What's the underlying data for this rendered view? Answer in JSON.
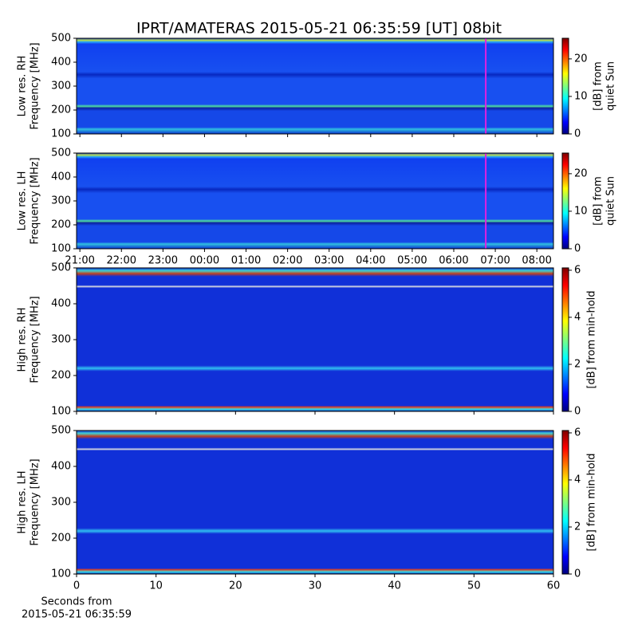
{
  "chart_data": [
    {
      "type": "heatmap",
      "title": "IPRT/AMATERAS 2015-05-21 06:35:59 [UT]   08bit",
      "ylabel": [
        "Low res. RH",
        "Frequency [MHz]"
      ],
      "ylim": [
        100,
        500
      ],
      "yticks": [
        100,
        200,
        300,
        400,
        500
      ],
      "xlim": [
        20.92,
        32.4
      ],
      "marker": 30.77,
      "marker_color": "#e020e0",
      "colorbar": {
        "label": [
          "[dB] from",
          "quiet Sun"
        ],
        "clim": [
          0,
          25.5
        ],
        "ticks": [
          0,
          10,
          20
        ]
      }
    },
    {
      "type": "heatmap",
      "ylabel": [
        "Low res. LH",
        "Frequency [MHz]"
      ],
      "ylim": [
        100,
        500
      ],
      "yticks": [
        100,
        200,
        300,
        400,
        500
      ],
      "xlim": [
        20.92,
        32.4
      ],
      "marker": 30.77,
      "marker_color": "#e020e0",
      "xticks": [
        {
          "value": 21,
          "label": "21:00"
        },
        {
          "value": 22,
          "label": "22:00"
        },
        {
          "value": 23,
          "label": "23:00"
        },
        {
          "value": 24,
          "label": "00:00"
        },
        {
          "value": 25,
          "label": "01:00"
        },
        {
          "value": 26,
          "label": "02:00"
        },
        {
          "value": 27,
          "label": "03:00"
        },
        {
          "value": 28,
          "label": "04:00"
        },
        {
          "value": 29,
          "label": "05:00"
        },
        {
          "value": 30,
          "label": "06:00"
        },
        {
          "value": 31,
          "label": "07:00"
        },
        {
          "value": 32,
          "label": "08:00"
        }
      ],
      "colorbar": {
        "label": [
          "[dB] from",
          "quiet Sun"
        ],
        "clim": [
          0,
          25.5
        ],
        "ticks": [
          0,
          10,
          20
        ]
      }
    },
    {
      "type": "heatmap",
      "ylabel": [
        "High res. RH",
        "Frequency [MHz]"
      ],
      "ylim": [
        100,
        500
      ],
      "yticks": [
        100,
        200,
        300,
        400,
        500
      ],
      "xlim": [
        0,
        60
      ],
      "colorbar": {
        "label": [
          "[dB] from min-hold"
        ],
        "clim": [
          0,
          6.1
        ],
        "ticks": [
          0,
          2,
          4,
          6
        ]
      }
    },
    {
      "type": "heatmap",
      "ylabel": [
        "High res. LH",
        "Frequency [MHz]"
      ],
      "ylim": [
        100,
        500
      ],
      "yticks": [
        100,
        200,
        300,
        400,
        500
      ],
      "xlim": [
        0,
        60
      ],
      "xticks": [
        0,
        10,
        20,
        30,
        40,
        50,
        60
      ],
      "xlabel": [
        "Seconds from",
        "2015-05-21 06:35:59"
      ],
      "colorbar": {
        "label": [
          "[dB] from min-hold"
        ],
        "clim": [
          0,
          6.1
        ],
        "ticks": [
          0,
          2,
          4,
          6
        ]
      }
    }
  ]
}
